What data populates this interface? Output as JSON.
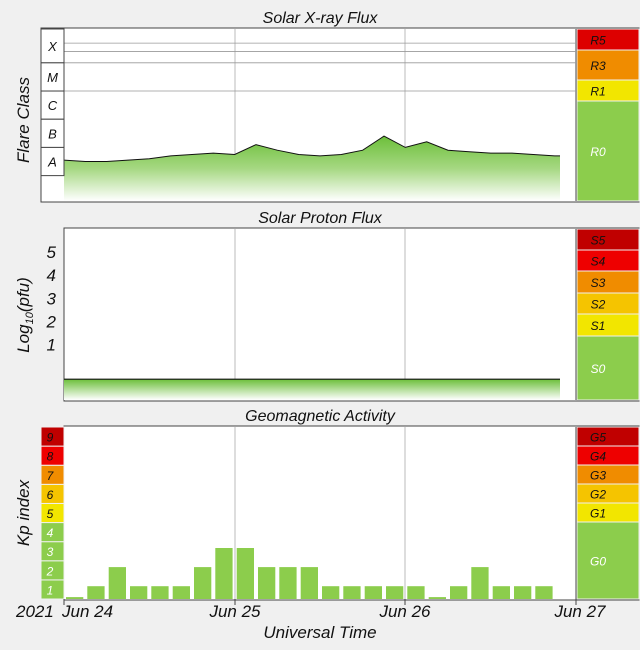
{
  "chart_data": [
    {
      "type": "area",
      "title": "Solar X-ray Flux",
      "ylabel": "Flare Class",
      "y_scale": "log10 W/m2",
      "ylim": [
        -8.9,
        -2.8
      ],
      "flare_classes": [
        "X",
        "M",
        "C",
        "B",
        "A"
      ],
      "scale_labels": [
        "R5",
        "R3",
        "R1",
        "R0"
      ],
      "x": [
        "2021-06-24 00:00",
        "2021-06-24 03:00",
        "2021-06-24 06:00",
        "2021-06-24 09:00",
        "2021-06-24 12:00",
        "2021-06-24 15:00",
        "2021-06-24 18:00",
        "2021-06-24 21:00",
        "2021-06-25 00:00",
        "2021-06-25 03:00",
        "2021-06-25 06:00",
        "2021-06-25 09:00",
        "2021-06-25 12:00",
        "2021-06-25 15:00",
        "2021-06-25 18:00",
        "2021-06-25 21:00",
        "2021-06-26 00:00",
        "2021-06-26 03:00",
        "2021-06-26 06:00",
        "2021-06-26 09:00",
        "2021-06-26 12:00",
        "2021-06-26 15:00",
        "2021-06-26 18:00",
        "2021-06-26 21:00",
        "2021-06-27 00:00"
      ],
      "y": [
        -7.45,
        -7.5,
        -7.5,
        -7.45,
        -7.4,
        -7.3,
        -7.25,
        -7.2,
        -7.25,
        -6.9,
        -7.1,
        -7.25,
        -7.3,
        -7.25,
        -7.1,
        -6.6,
        -7.0,
        -6.8,
        -7.1,
        -7.15,
        -7.2,
        -7.2,
        -7.25,
        -7.3,
        -7.3
      ]
    },
    {
      "type": "area",
      "title": "Solar Proton Flux",
      "ylabel": "Log10(pfu)",
      "yticks": [
        "5",
        "4",
        "3",
        "2",
        "1"
      ],
      "ylim": [
        -1.4,
        6.0
      ],
      "scale_labels": [
        "S5",
        "S4",
        "S3",
        "S2",
        "S1",
        "S0"
      ],
      "x": [
        "2021-06-24 00:00",
        "2021-06-25 00:00",
        "2021-06-26 00:00",
        "2021-06-27 00:00"
      ],
      "y": [
        -0.5,
        -0.5,
        -0.5,
        -0.5
      ]
    },
    {
      "type": "bar",
      "title": "Geomagnetic Activity",
      "ylabel": "Kp index",
      "xlabel": "Universal Time",
      "year_label": "2021",
      "ylim": [
        0,
        9
      ],
      "yticks": [
        "9",
        "8",
        "7",
        "6",
        "5",
        "4",
        "3",
        "2",
        "1"
      ],
      "scale_labels": [
        "G5",
        "G4",
        "G3",
        "G2",
        "G1",
        "G0"
      ],
      "x_ticks": [
        "Jun 24",
        "Jun 25",
        "Jun 26",
        "Jun 27"
      ],
      "values": [
        0.1,
        0.67,
        1.67,
        0.67,
        0.67,
        0.67,
        1.67,
        2.67,
        2.67,
        1.67,
        1.67,
        1.67,
        0.67,
        0.67,
        0.67,
        0.67,
        0.67,
        0.1,
        0.67,
        1.67,
        0.67,
        0.67,
        0.67,
        0
      ]
    }
  ]
}
